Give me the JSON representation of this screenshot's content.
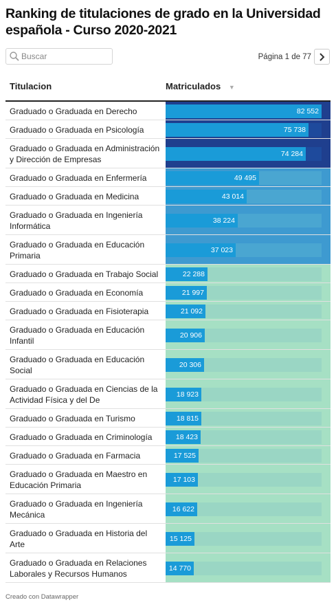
{
  "title": "Ranking de titulaciones de grado en la Universidad española - Curso 2020-2021",
  "search": {
    "placeholder": "Buscar",
    "value": ""
  },
  "pager": {
    "label": "Página 1 de 77"
  },
  "header": {
    "col_title": "Titulacion",
    "col_value": "Matriculados",
    "sort_icon": "sort-desc-icon"
  },
  "footer": "Creado con Datawrapper",
  "colors": {
    "bar": "#1a9bd8",
    "track_dark": "#1e4a9c",
    "track_mid": "#4aa6d1",
    "track_light": "#9ad6c4",
    "cell_dark": "#1f3f8e",
    "cell_mid": "#3e9ad0",
    "cell_light": "#a6e0c4"
  },
  "chart_data": {
    "type": "table",
    "max_value": 82552,
    "rows": [
      {
        "name": "Graduado o Graduada en Derecho",
        "value": 82552,
        "label": "82 552",
        "tier": "dark"
      },
      {
        "name": "Graduado o Graduada en Psicología",
        "value": 75738,
        "label": "75 738",
        "tier": "dark"
      },
      {
        "name": "Graduado o Graduada en Administración y Dirección de Empresas",
        "value": 74284,
        "label": "74 284",
        "tier": "dark"
      },
      {
        "name": "Graduado o Graduada en Enfermería",
        "value": 49495,
        "label": "49 495",
        "tier": "mid"
      },
      {
        "name": "Graduado o Graduada en Medicina",
        "value": 43014,
        "label": "43 014",
        "tier": "mid"
      },
      {
        "name": "Graduado o Graduada en Ingeniería Informática",
        "value": 38224,
        "label": "38 224",
        "tier": "mid"
      },
      {
        "name": "Graduado o Graduada en Educación Primaria",
        "value": 37023,
        "label": "37 023",
        "tier": "mid"
      },
      {
        "name": "Graduado o Graduada en Trabajo Social",
        "value": 22288,
        "label": "22 288",
        "tier": "light"
      },
      {
        "name": "Graduado o Graduada en Economía",
        "value": 21997,
        "label": "21 997",
        "tier": "light"
      },
      {
        "name": "Graduado o Graduada en Fisioterapia",
        "value": 21092,
        "label": "21 092",
        "tier": "light"
      },
      {
        "name": "Graduado o Graduada en Educación Infantil",
        "value": 20906,
        "label": "20 906",
        "tier": "light"
      },
      {
        "name": "Graduado o Graduada en Educación Social",
        "value": 20306,
        "label": "20 306",
        "tier": "light"
      },
      {
        "name": "Graduado o Graduada en Ciencias de la Actividad Física y del De",
        "value": 18923,
        "label": "18 923",
        "tier": "light"
      },
      {
        "name": "Graduado o Graduada en Turismo",
        "value": 18815,
        "label": "18 815",
        "tier": "light"
      },
      {
        "name": "Graduado o Graduada en Criminología",
        "value": 18423,
        "label": "18 423",
        "tier": "light"
      },
      {
        "name": "Graduado o Graduada en Farmacia",
        "value": 17525,
        "label": "17 525",
        "tier": "light"
      },
      {
        "name": "Graduado o Graduada en Maestro en Educación Primaria",
        "value": 17103,
        "label": "17 103",
        "tier": "light"
      },
      {
        "name": "Graduado o Graduada en Ingeniería Mecánica",
        "value": 16622,
        "label": "16 622",
        "tier": "light"
      },
      {
        "name": "Graduado o Graduada en Historia del Arte",
        "value": 15125,
        "label": "15 125",
        "tier": "light"
      },
      {
        "name": "Graduado o Graduada en Relaciones Laborales y Recursos Humanos",
        "value": 14770,
        "label": "14 770",
        "tier": "light"
      }
    ]
  }
}
